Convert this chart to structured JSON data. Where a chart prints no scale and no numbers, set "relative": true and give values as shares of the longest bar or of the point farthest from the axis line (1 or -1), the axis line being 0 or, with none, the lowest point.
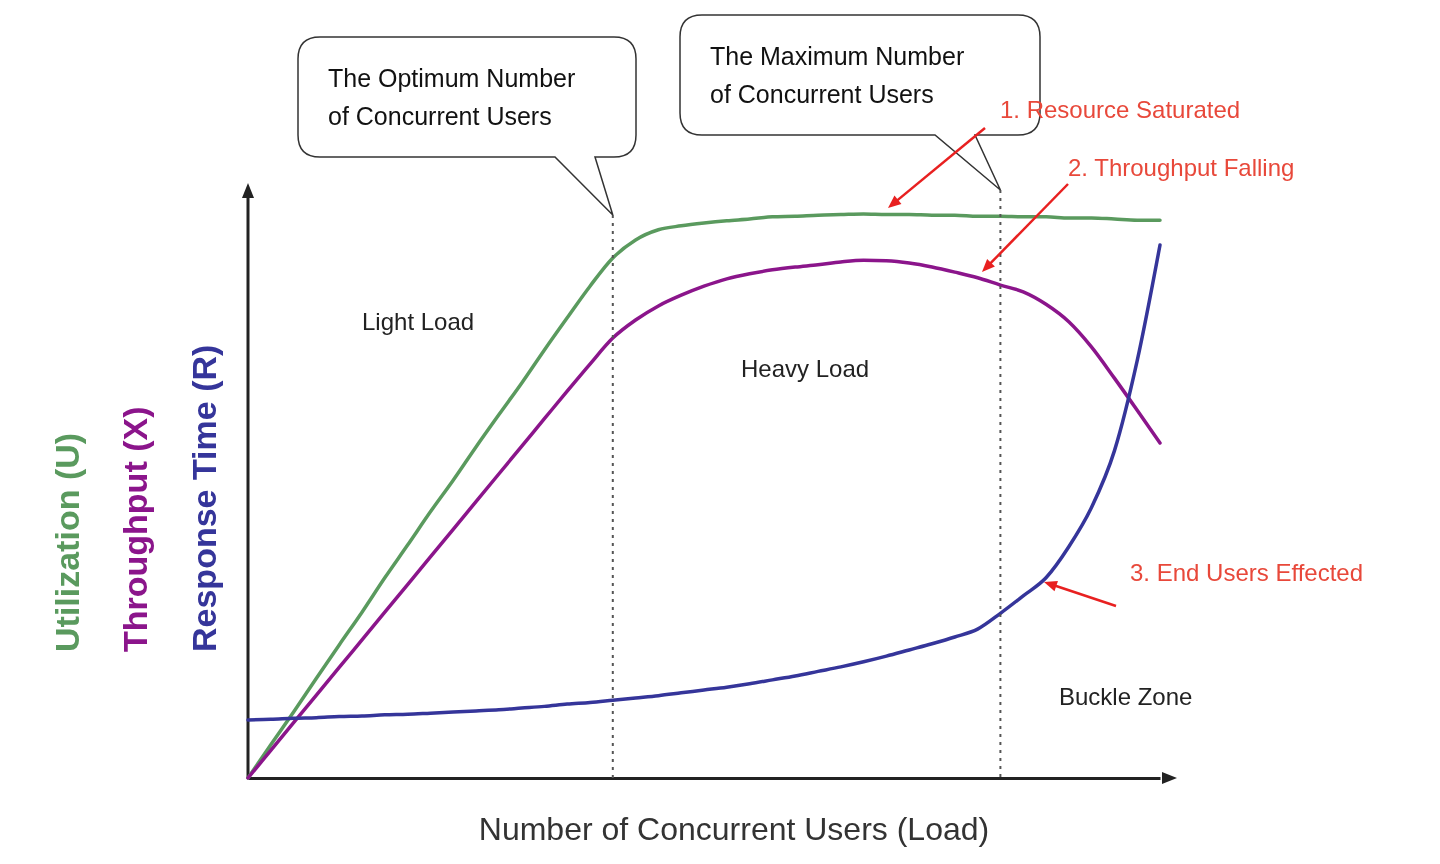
{
  "chart_data": {
    "type": "line",
    "relative": true,
    "xlabel": "Number of  Concurrent Users (Load)",
    "legend": "left",
    "line_style": "solid",
    "categories": [
      null,
      null,
      null,
      null,
      null,
      null,
      null,
      null,
      null,
      null,
      null,
      null,
      null,
      null,
      null,
      null,
      null,
      null,
      null,
      null,
      null,
      null,
      null,
      null,
      null,
      null,
      null,
      null,
      null,
      null,
      null,
      null,
      null,
      null,
      null,
      null,
      null,
      null,
      null,
      null,
      null
    ],
    "series": [
      {
        "name": "Utilization (U)",
        "color": "#5a9a5e",
        "values": [
          0,
          0.059,
          0.117,
          0.177,
          0.236,
          0.294,
          0.355,
          0.413,
          0.472,
          0.528,
          0.587,
          0.644,
          0.7,
          0.759,
          0.816,
          0.872,
          0.922,
          0.954,
          0.972,
          0.979,
          0.984,
          0.988,
          0.991,
          0.995,
          0.996,
          0.998,
          0.999,
          1,
          0.999,
          0.999,
          0.998,
          0.998,
          0.996,
          0.996,
          0.995,
          0.995,
          0.993,
          0.993,
          0.991,
          0.989,
          0.989
        ]
      },
      {
        "name": "Throughput (X)",
        "color": "#8b158b",
        "values": [
          0,
          0.049,
          0.098,
          0.147,
          0.196,
          0.245,
          0.294,
          0.343,
          0.392,
          0.441,
          0.49,
          0.539,
          0.588,
          0.637,
          0.686,
          0.734,
          0.78,
          0.812,
          0.837,
          0.856,
          0.872,
          0.885,
          0.894,
          0.901,
          0.906,
          0.91,
          0.915,
          0.918,
          0.917,
          0.913,
          0.906,
          0.897,
          0.887,
          0.874,
          0.862,
          0.84,
          0.809,
          0.764,
          0.709,
          0.652,
          0.594
        ]
      },
      {
        "name": "Response Time (R)",
        "color": "#35359a",
        "values": [
          0.103,
          0.104,
          0.106,
          0.107,
          0.109,
          0.11,
          0.112,
          0.113,
          0.115,
          0.117,
          0.119,
          0.121,
          0.124,
          0.127,
          0.131,
          0.134,
          0.138,
          0.142,
          0.146,
          0.151,
          0.156,
          0.161,
          0.167,
          0.174,
          0.181,
          0.189,
          0.197,
          0.206,
          0.216,
          0.227,
          0.238,
          0.25,
          0.264,
          0.292,
          0.323,
          0.355,
          0.41,
          0.48,
          0.58,
          0.74,
          0.945
        ]
      }
    ],
    "annotations": [
      "The Optimum Number of Concurrent Users",
      "The Maximum Number of Concurrent Users",
      "Light Load",
      "Heavy Load",
      "Buckle Zone",
      "1. Resource Saturated",
      "2. Throughput Falling",
      "3. End Users Effected"
    ]
  }
}
